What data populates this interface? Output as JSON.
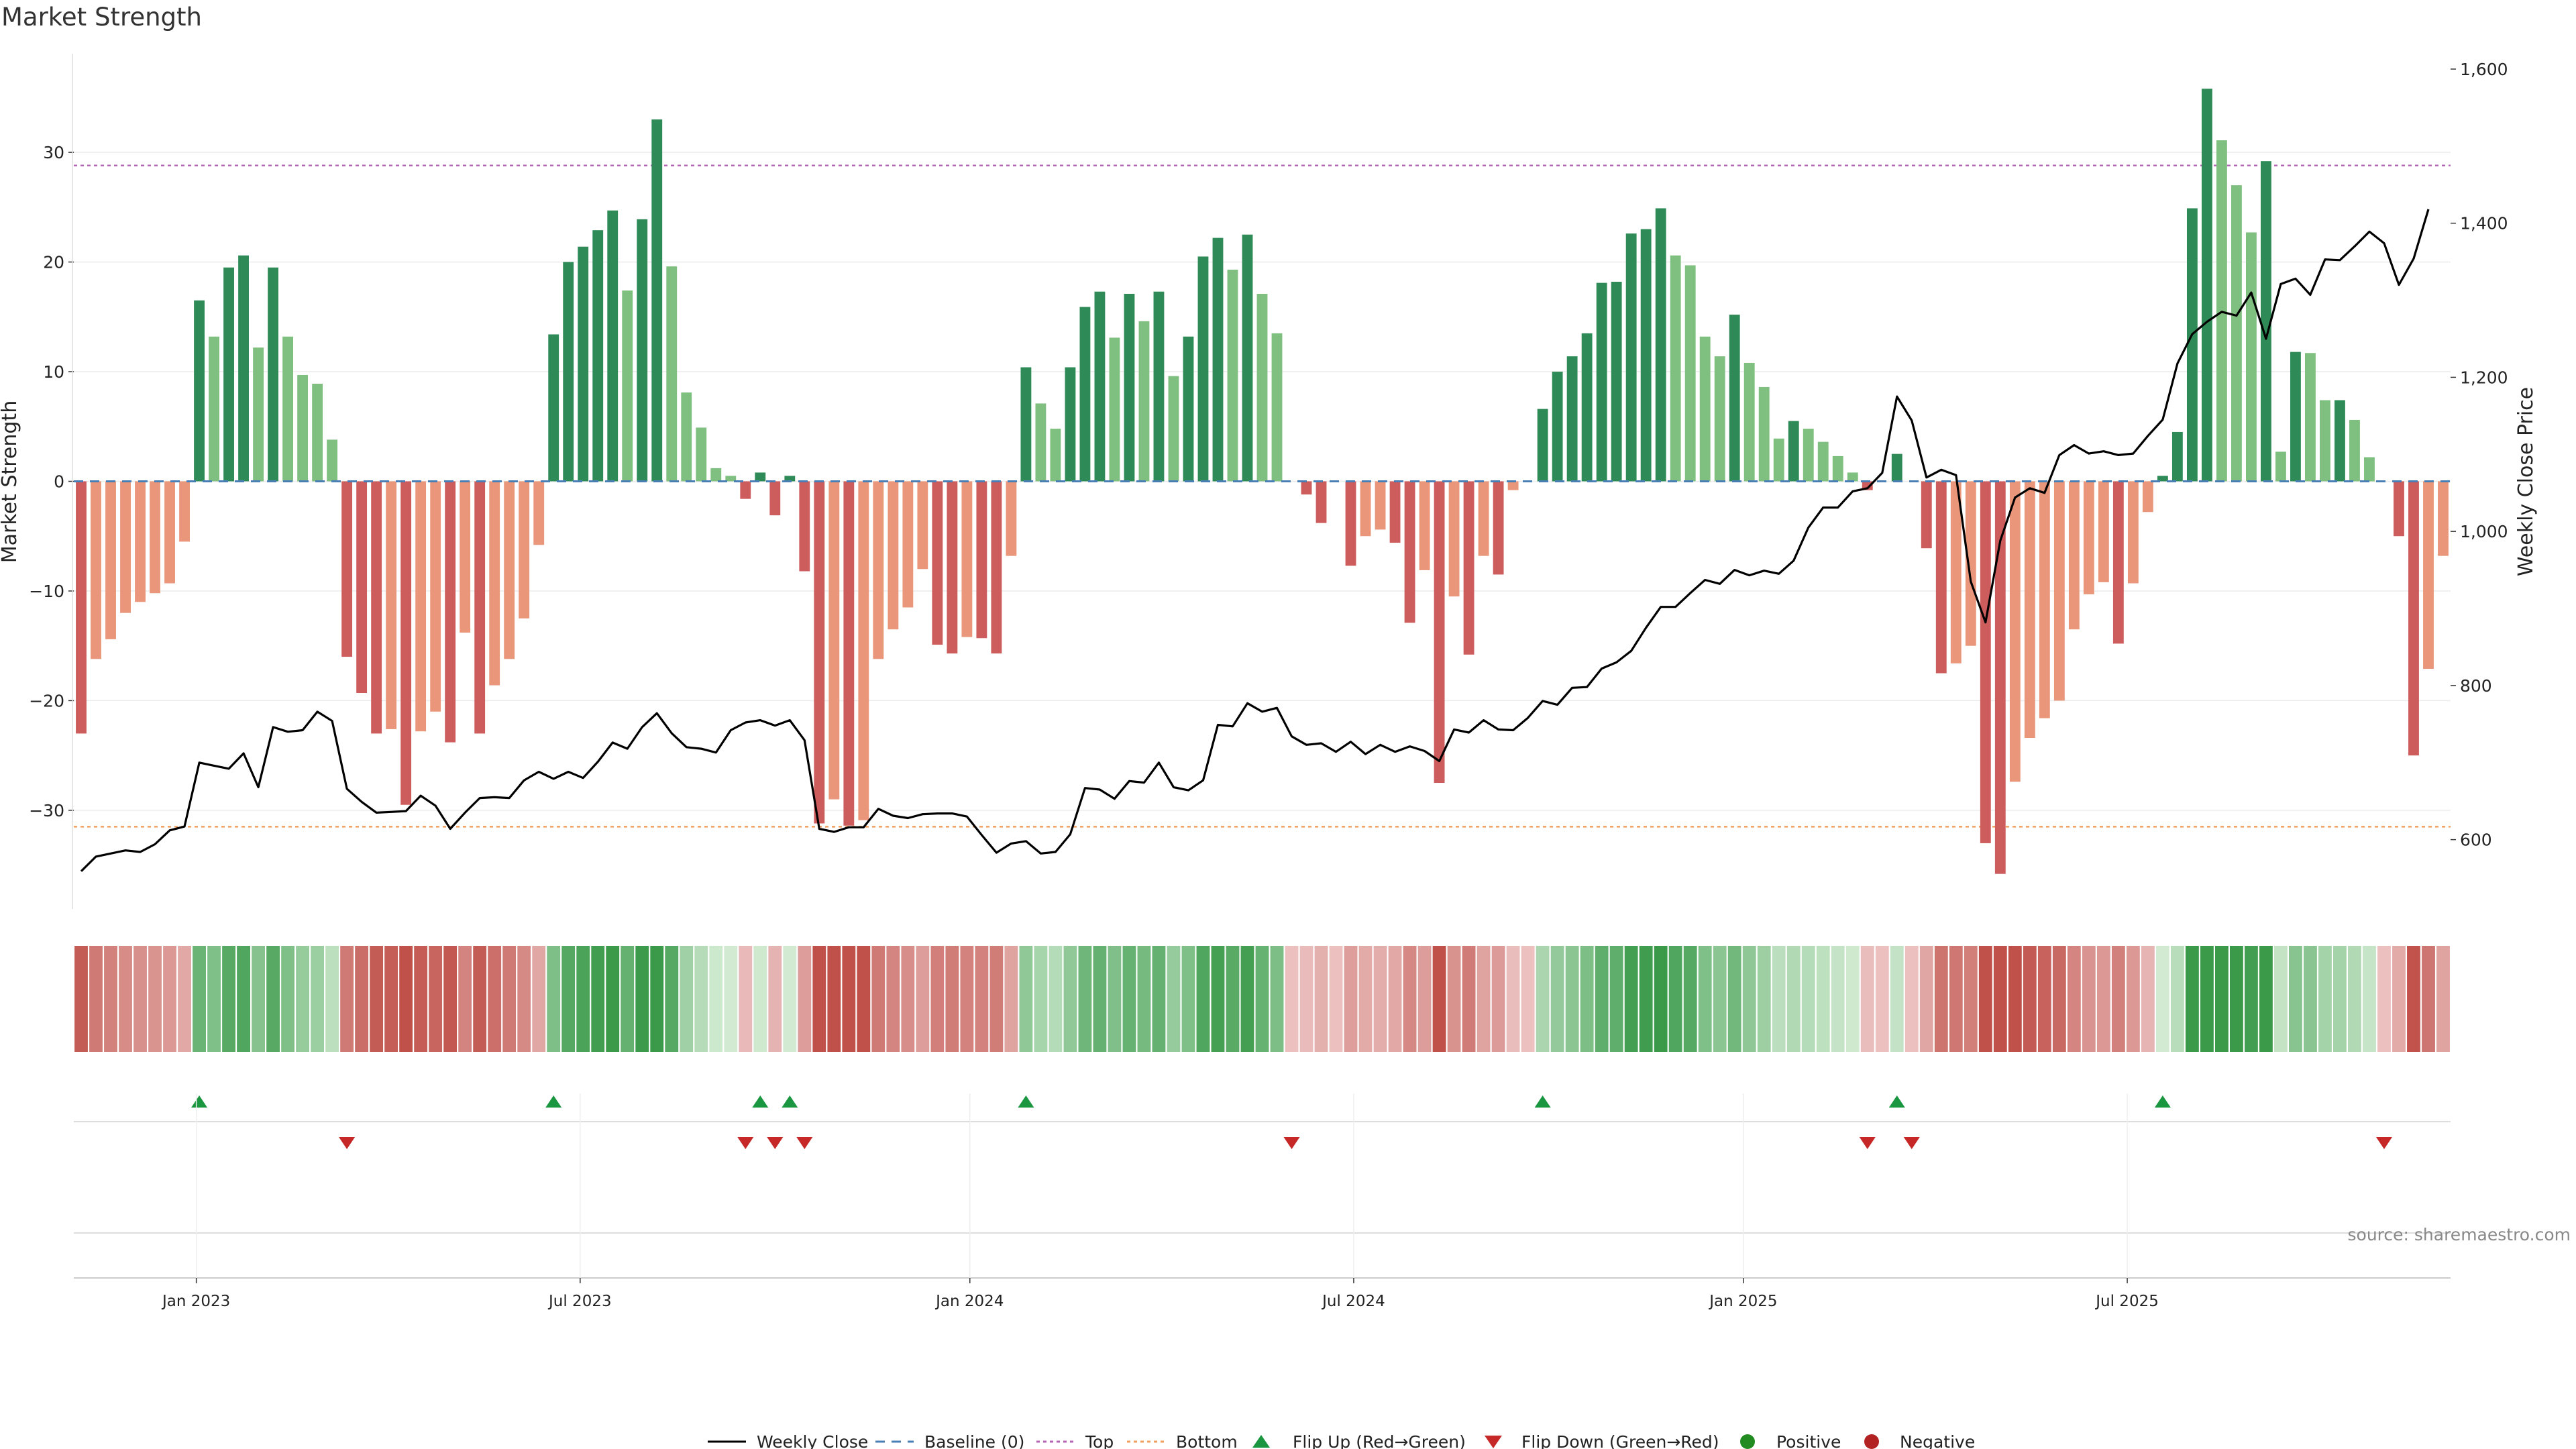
{
  "chart_data": {
    "type": "bar",
    "title": "Market Strength",
    "ylabel": "Market Strength",
    "y2label": "Weekly Close Price",
    "source": "source: sharemaestro.com",
    "ylim": [
      -39,
      39
    ],
    "y2lim": [
      510,
      1620
    ],
    "y_ticks": [
      -30,
      -20,
      -10,
      0,
      10,
      20,
      30
    ],
    "y_tick_labels": [
      "−30",
      "−20",
      "−10",
      "0",
      "10",
      "20",
      "30"
    ],
    "y2_ticks": [
      600,
      800,
      1000,
      1200,
      1400,
      1600
    ],
    "y2_tick_labels": [
      "600",
      "800",
      "1,000",
      "1,200",
      "1,400",
      "1,600"
    ],
    "x_tick_labels": [
      "Jan 2023",
      "Jul 2023",
      "Jan 2024",
      "Jul 2024",
      "Jan 2025",
      "Jul 2025"
    ],
    "x_tick_weeks": [
      8.3,
      34.3,
      60.7,
      86.7,
      113.1,
      139.1
    ],
    "top_line": 28.8,
    "bottom_line": -31.5,
    "grid": true,
    "colors": {
      "up_strong": "#2e8b57",
      "up_weak": "#7fbf7f",
      "down_strong": "#cd5c5c",
      "down_weak": "#e9967a",
      "price": "#000000",
      "top": "#b565b5",
      "bottom": "#f0a060",
      "flip_up": "#1a9641",
      "flip_down": "#c62828",
      "baseline": "#4a7fb5"
    },
    "strength": [
      -23,
      -16.2,
      -14.4,
      -12,
      -11,
      -10.2,
      -9.3,
      -5.5,
      16.5,
      13.2,
      19.5,
      20.6,
      12.2,
      19.5,
      13.2,
      9.7,
      8.9,
      3.8,
      -16,
      -19.3,
      -23,
      -22.6,
      -29.5,
      -22.8,
      -21,
      -23.8,
      -13.8,
      -23,
      -18.6,
      -16.2,
      -12.5,
      -5.8,
      13.4,
      20,
      21.4,
      22.9,
      24.7,
      17.4,
      23.9,
      33,
      19.6,
      8.1,
      4.9,
      1.2,
      0.5,
      -1.6,
      0.8,
      -3.1,
      0.5,
      -8.2,
      -31.2,
      -29,
      -31.4,
      -30.9,
      -16.2,
      -13.5,
      -11.5,
      -8,
      -14.9,
      -15.7,
      -14.2,
      -14.3,
      -15.7,
      -6.8,
      10.4,
      7.1,
      4.8,
      10.4,
      15.9,
      17.3,
      13.1,
      17.1,
      14.6,
      17.3,
      9.6,
      13.2,
      20.5,
      22.2,
      19.3,
      22.5,
      17.1,
      13.5,
      0,
      -1.2,
      -3.8,
      0,
      -7.7,
      -5,
      -4.4,
      -5.6,
      -12.9,
      -8.1,
      -27.5,
      -10.5,
      -15.8,
      -6.8,
      -8.5,
      -0.8,
      0,
      6.6,
      10,
      11.4,
      13.5,
      18.1,
      18.2,
      22.6,
      23,
      24.9,
      20.6,
      19.7,
      13.2,
      11.4,
      15.2,
      10.8,
      8.6,
      3.9,
      5.5,
      4.8,
      3.6,
      2.3,
      0.8,
      -0.8,
      0,
      2.5,
      0,
      -6.1,
      -17.5,
      -16.6,
      -15,
      -33,
      -35.8,
      -27.4,
      -23.4,
      -21.6,
      -20,
      -13.5,
      -10.3,
      -9.2,
      -14.8,
      -9.3,
      -2.8,
      0.5,
      4.5,
      24.9,
      35.8,
      31.1,
      27,
      22.7,
      29.2,
      2.7,
      11.8,
      11.7,
      7.4,
      7.4,
      5.6,
      2.2,
      0,
      -5,
      -25,
      -17.1,
      -6.8
    ],
    "price": [
      559,
      578,
      582,
      586,
      584,
      594,
      612,
      617,
      700,
      696,
      692,
      712,
      668,
      746,
      740,
      742,
      766,
      754,
      666,
      649,
      635,
      636,
      637,
      657,
      644,
      614,
      635,
      654,
      655,
      654,
      677,
      688,
      679,
      688,
      680,
      701,
      726,
      718,
      746,
      764,
      738,
      720,
      718,
      713,
      742,
      752,
      755,
      748,
      755,
      729,
      614,
      610,
      616,
      616,
      640,
      631,
      628,
      633,
      634,
      634,
      630,
      606,
      583,
      595,
      598,
      582,
      584,
      607,
      667,
      665,
      653,
      676,
      674,
      700,
      668,
      664,
      677,
      749,
      747,
      777,
      766,
      771,
      734,
      723,
      725,
      714,
      727,
      711,
      723,
      714,
      721,
      715,
      702,
      743,
      739,
      755,
      743,
      742,
      758,
      780,
      775,
      797,
      798,
      822,
      830,
      845,
      875,
      902,
      902,
      920,
      937,
      932,
      950,
      943,
      949,
      945,
      962,
      1005,
      1031,
      1031,
      1052,
      1056,
      1076,
      1175,
      1144,
      1070,
      1080,
      1073,
      935,
      882,
      988,
      1044,
      1056,
      1050,
      1099,
      1112,
      1101,
      1104,
      1099,
      1101,
      1124,
      1145,
      1218,
      1256,
      1272,
      1285,
      1280,
      1310,
      1250,
      1321,
      1328,
      1307,
      1353,
      1352,
      1370,
      1389,
      1374,
      1320,
      1354,
      1418
    ]
  },
  "legend": {
    "weekly_close": "Weekly Close",
    "baseline": "Baseline (0)",
    "top": "Top",
    "bottom": "Bottom",
    "flip_up": "Flip Up (Red→Green)",
    "flip_down": "Flip Down (Green→Red)",
    "positive": "Positive",
    "negative": "Negative"
  }
}
